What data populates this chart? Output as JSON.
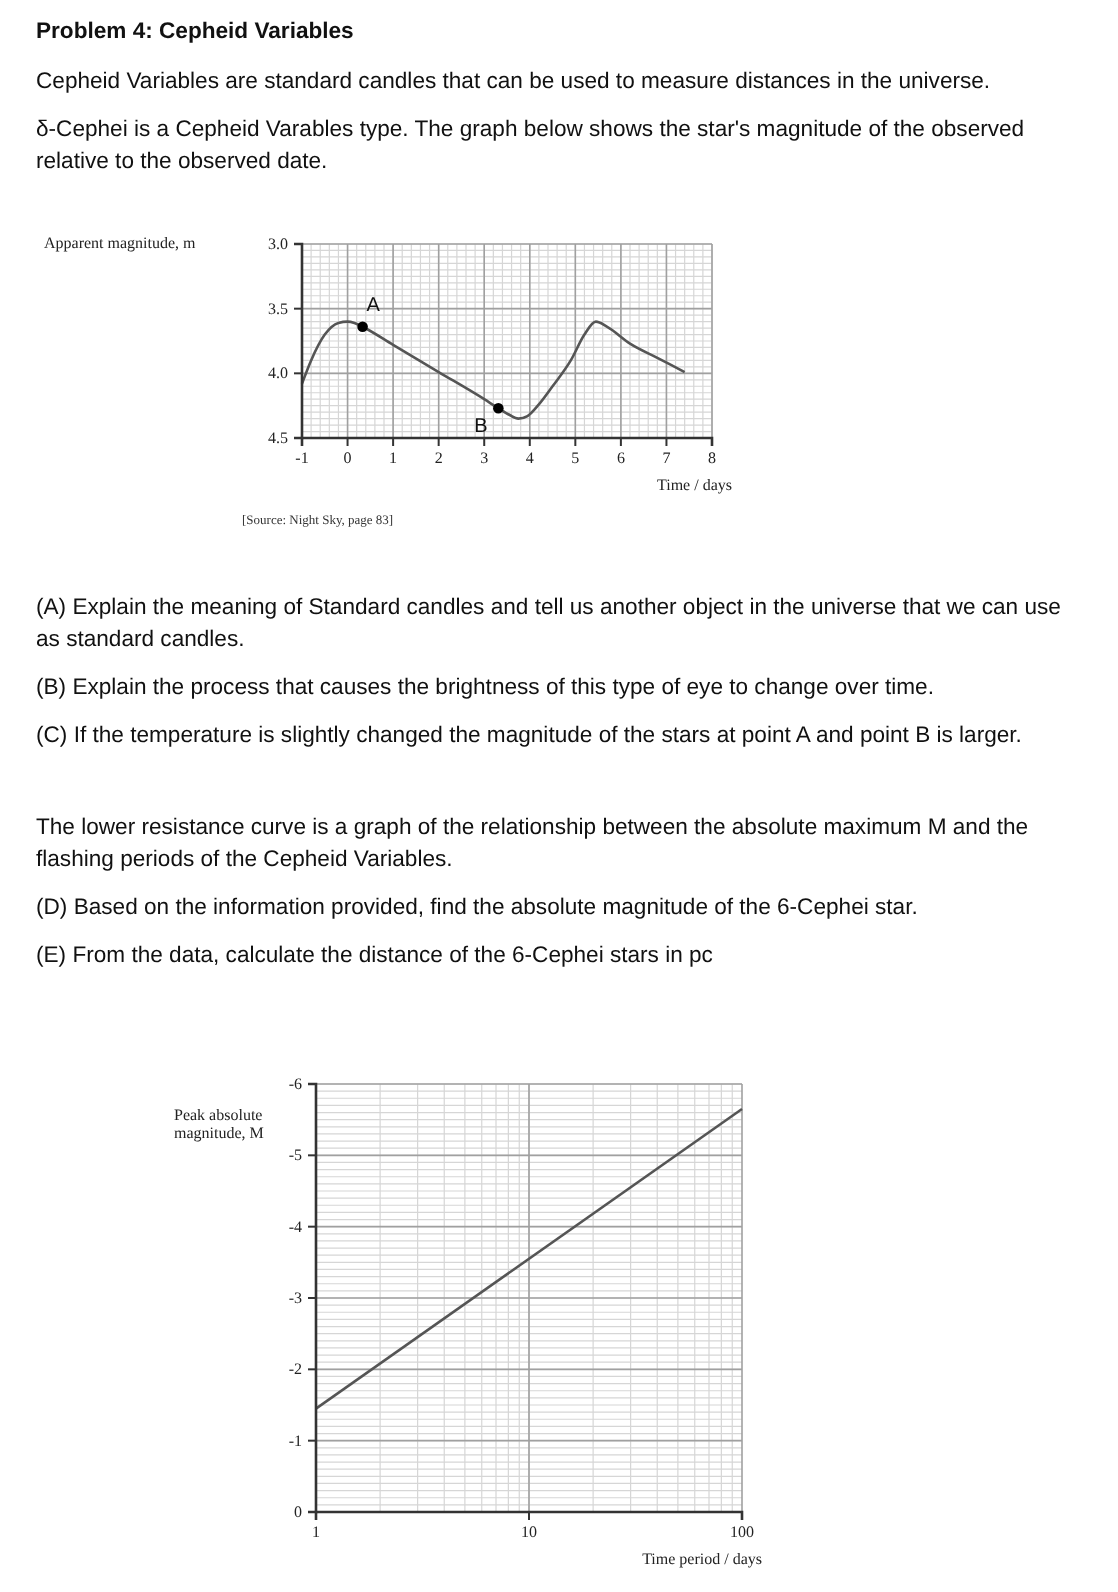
{
  "chart_data": [
    {
      "type": "line",
      "title": "Problem 4: Cepheid Variables",
      "annotations": [
        "Cepheid Variables are standard candles that can be used to measure distances in the universe.",
        "δ-Cephei is a Cepheid Varables type. The graph below shows the star's magnitude of the observed relative to the observed date.",
        {
          "text": "A",
          "x": 0.33,
          "y": 3.64
        },
        {
          "text": "B",
          "x": 3.31,
          "y": 4.27
        },
        "[Source: Night Sky, page 83]"
      ],
      "xlabel": "Time / days",
      "ylabel": "Apparent magnitude, m",
      "xlim": [
        -1,
        8
      ],
      "xticks": [
        -1,
        0,
        1,
        2,
        3,
        4,
        5,
        6,
        7,
        8
      ],
      "ylim": [
        4.5,
        3.0
      ],
      "yticks": [
        {
          "value": 3.0,
          "label": "3.0"
        },
        3.5,
        {
          "value": 4.0,
          "label": "4.0"
        },
        4.5
      ],
      "grid": true,
      "series": [
        {
          "type": "line",
          "color": "#555555",
          "marker": "none",
          "x": [
            -1,
            -0.8,
            -0.5,
            -0.2,
            0,
            0.15,
            0.33,
            1,
            2,
            3,
            3.31,
            3.55,
            3.75,
            3.95,
            4.2,
            4.5,
            4.9,
            5.2,
            5.45,
            5.7,
            6.2,
            6.8,
            7.4
          ],
          "values": [
            4.08,
            3.9,
            3.7,
            3.61,
            3.6,
            3.61,
            3.64,
            3.78,
            3.99,
            4.2,
            4.27,
            4.32,
            4.35,
            4.33,
            4.24,
            4.1,
            3.9,
            3.7,
            3.6,
            3.64,
            3.77,
            3.88,
            3.99
          ]
        },
        {
          "type": "scatter",
          "color": "#000000",
          "marker": "circle",
          "x": [
            0.33,
            3.31
          ],
          "values": [
            3.64,
            4.27
          ]
        }
      ]
    },
    {
      "type": "line",
      "annotations": [
        "(A) Explain the meaning of Standard candles and tell us another object in the universe that we can use as standard candles.",
        "(B) Explain the process that causes the brightness of this type of eye to change over time.",
        "(C) If the temperature is slightly changed the magnitude of the stars at point A and point B is larger.",
        "The lower resistance curve is a graph of the relationship between the absolute maximum M and the flashing periods of the Cepheid Variables.",
        "(D) Based on the information provided, find the absolute magnitude of the 6-Cephei star.",
        "(E) From the data, calculate the distance of the 6-Cephei stars in pc"
      ],
      "xlabel": "Time period / days",
      "ylabel": "Peak absolute magnitude, M",
      "log": "x",
      "xlim": [
        1,
        100
      ],
      "xticks": [
        1,
        10,
        100
      ],
      "ylim": [
        0,
        -6
      ],
      "yticks": [
        0,
        -1,
        -2,
        -3,
        -4,
        -5,
        -6
      ],
      "grid": true,
      "x": [
        1,
        100
      ],
      "values": [
        -1.45,
        -5.65
      ],
      "color": "#555555"
    }
  ]
}
